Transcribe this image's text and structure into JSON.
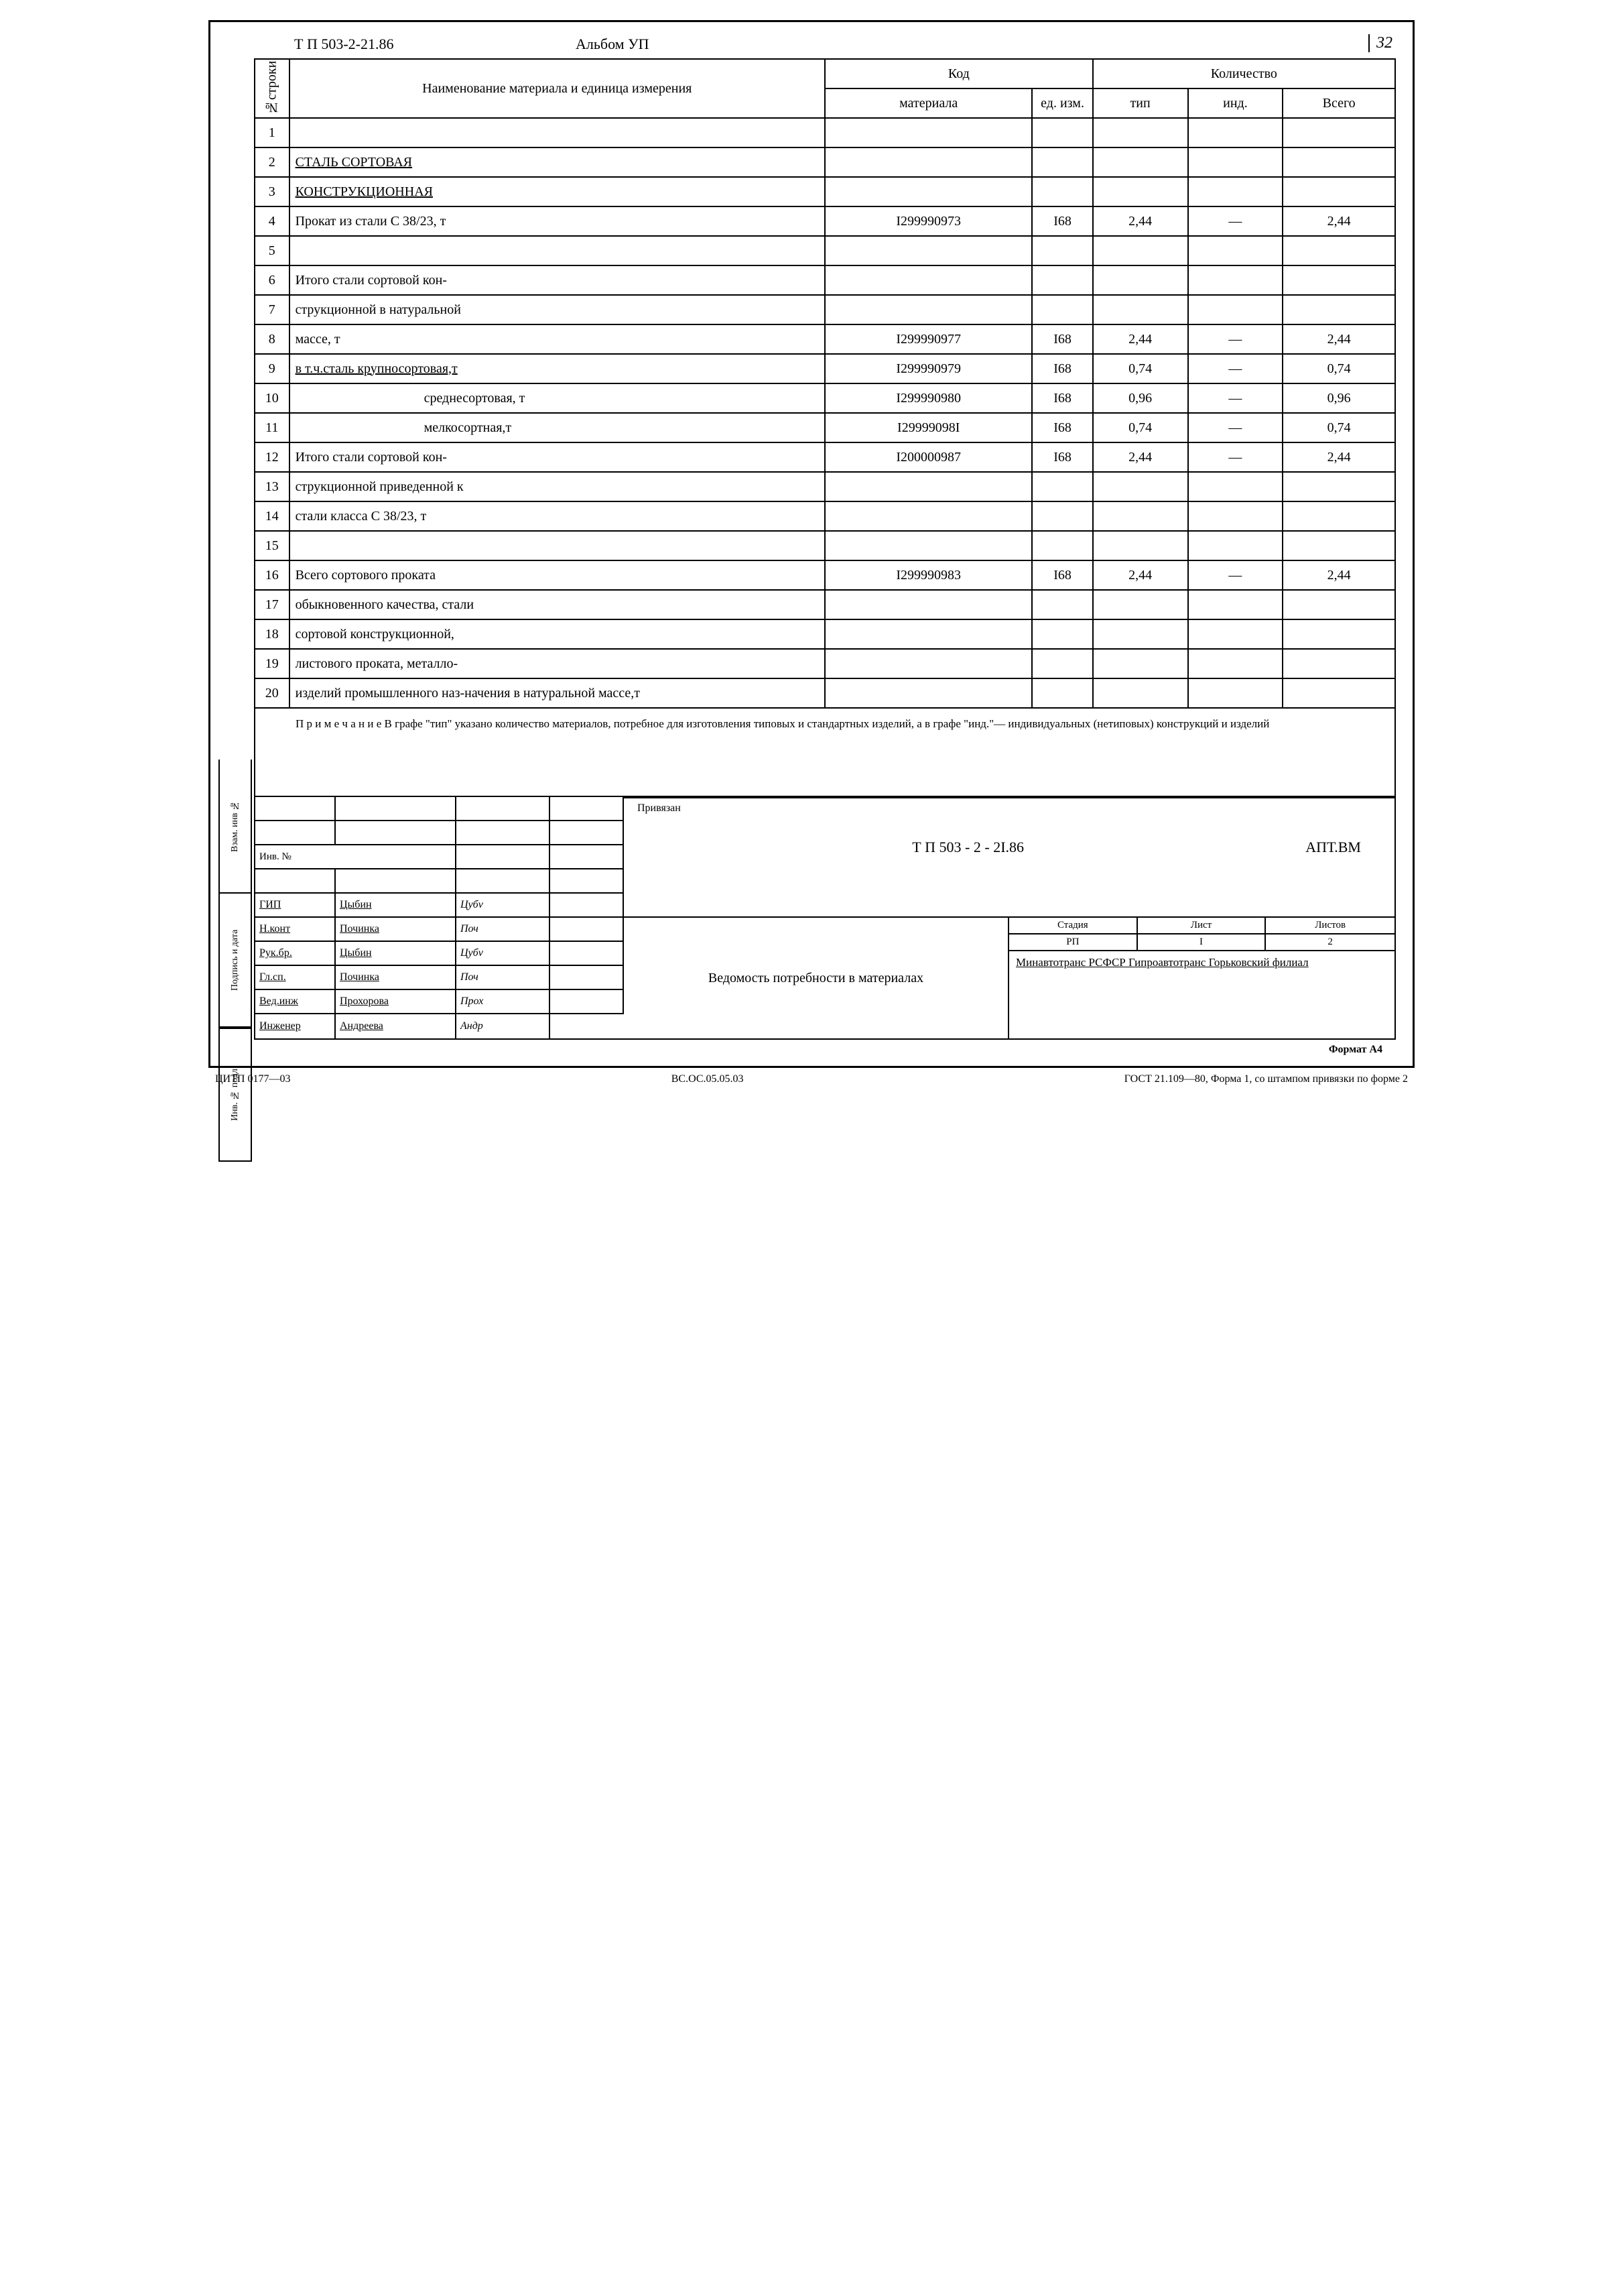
{
  "header": {
    "doc_code": "Т П 503-2-21.86",
    "album": "Альбом УП",
    "page_number": "32"
  },
  "table": {
    "headers": {
      "row_num": "№строки",
      "name": "Наименование материала и единица измерения",
      "code": "Код",
      "code_mat": "материала",
      "code_ed": "ед. изм.",
      "qty": "Количество",
      "qty_tip": "тип",
      "qty_ind": "инд.",
      "qty_total": "Всего"
    },
    "rows": [
      {
        "n": "1",
        "name": "",
        "code": "",
        "ed": "",
        "tip": "",
        "ind": "",
        "total": ""
      },
      {
        "n": "2",
        "name": "СТАЛЬ СОРТОВАЯ",
        "code": "",
        "ed": "",
        "tip": "",
        "ind": "",
        "total": "",
        "underline": true
      },
      {
        "n": "3",
        "name": "КОНСТРУКЦИОННАЯ",
        "code": "",
        "ed": "",
        "tip": "",
        "ind": "",
        "total": "",
        "underline": true
      },
      {
        "n": "4",
        "name": "Прокат из стали С 38/23, т",
        "code": "I299990973",
        "ed": "I68",
        "tip": "2,44",
        "ind": "—",
        "total": "2,44"
      },
      {
        "n": "5",
        "name": "",
        "code": "",
        "ed": "",
        "tip": "",
        "ind": "",
        "total": ""
      },
      {
        "n": "6",
        "name": "Итого стали сортовой кон-",
        "code": "",
        "ed": "",
        "tip": "",
        "ind": "",
        "total": ""
      },
      {
        "n": "7",
        "name": "струкционной в натуральной",
        "code": "",
        "ed": "",
        "tip": "",
        "ind": "",
        "total": ""
      },
      {
        "n": "8",
        "name": "массе, т",
        "code": "I299990977",
        "ed": "I68",
        "tip": "2,44",
        "ind": "—",
        "total": "2,44"
      },
      {
        "n": "9",
        "name": "в т.ч.сталь крупносортовая,т",
        "code": "I299990979",
        "ed": "I68",
        "tip": "0,74",
        "ind": "—",
        "total": "0,74",
        "underline": true
      },
      {
        "n": "10",
        "name": "среднесортовая, т",
        "code": "I299990980",
        "ed": "I68",
        "tip": "0,96",
        "ind": "—",
        "total": "0,96",
        "indent": true
      },
      {
        "n": "11",
        "name": "мелкосортная,т",
        "code": "I29999098I",
        "ed": "I68",
        "tip": "0,74",
        "ind": "—",
        "total": "0,74",
        "indent": true
      },
      {
        "n": "12",
        "name": "Итого стали сортовой кон-",
        "code": "I200000987",
        "ed": "I68",
        "tip": "2,44",
        "ind": "—",
        "total": "2,44"
      },
      {
        "n": "13",
        "name": "струкционной приведенной к",
        "code": "",
        "ed": "",
        "tip": "",
        "ind": "",
        "total": ""
      },
      {
        "n": "14",
        "name": "стали класса С 38/23, т",
        "code": "",
        "ed": "",
        "tip": "",
        "ind": "",
        "total": ""
      },
      {
        "n": "15",
        "name": "",
        "code": "",
        "ed": "",
        "tip": "",
        "ind": "",
        "total": ""
      },
      {
        "n": "16",
        "name": "Всего сортового проката",
        "code": "I299990983",
        "ed": "I68",
        "tip": "2,44",
        "ind": "—",
        "total": "2,44"
      },
      {
        "n": "17",
        "name": "обыкновенного качества, стали",
        "code": "",
        "ed": "",
        "tip": "",
        "ind": "",
        "total": ""
      },
      {
        "n": "18",
        "name": "сортовой конструкционной,",
        "code": "",
        "ed": "",
        "tip": "",
        "ind": "",
        "total": ""
      },
      {
        "n": "19",
        "name": "листового проката, металло-",
        "code": "",
        "ed": "",
        "tip": "",
        "ind": "",
        "total": ""
      },
      {
        "n": "20",
        "name": "изделий промышленного наз-начения в натуральной массе,т",
        "code": "",
        "ed": "",
        "tip": "",
        "ind": "",
        "total": ""
      }
    ]
  },
  "note": {
    "text": "П р и м е ч а н и е В графе \"тип\" указано количество материалов, потребное для изготовления типовых и стандартных изделий, а в графе \"инд.\"— индивидуальных (нетиповых) конструкций и изделий"
  },
  "stamp": {
    "privyazan": "Привязан",
    "inv_no": "Инв. №",
    "roles": [
      {
        "role": "ГИП",
        "name": "Цыбин",
        "sig": "Цубv"
      },
      {
        "role": "Н.конт",
        "name": "Починка",
        "sig": "Поч"
      },
      {
        "role": "Рук.бр.",
        "name": "Цыбин",
        "sig": "Цубv"
      },
      {
        "role": "Гл.сп.",
        "name": "Починка",
        "sig": "Поч"
      },
      {
        "role": "Вед.инж",
        "name": "Прохорова",
        "sig": "Прох"
      },
      {
        "role": "Инженер",
        "name": "Андреева",
        "sig": "Андр"
      }
    ],
    "doc_code": "Т П    503 - 2 - 2I.86",
    "doc_suffix": "АПТ.ВМ",
    "title": "Ведомость потребности в материалах",
    "status": {
      "stadia_h": "Стадия",
      "list_h": "Лист",
      "listov_h": "Листов",
      "stadia": "РП",
      "list": "I",
      "listov": "2"
    },
    "org": "Минавтотранс РСФСР Гипроавтотранс Горьковский филиал"
  },
  "side_tabs": [
    "Взам. инв №",
    "Подпись и дата",
    "Инв. № подл"
  ],
  "footer": {
    "format": "Формат А4",
    "left": "ЦИТП 0177—03",
    "mid": "ВС.ОС.05.05.03",
    "right": "ГОСТ 21.109—80, Форма 1, со штампом привязки по форме 2"
  }
}
